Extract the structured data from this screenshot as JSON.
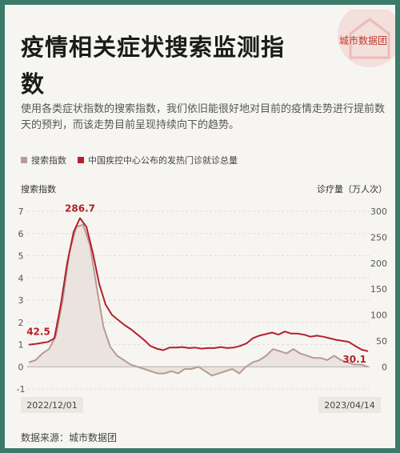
{
  "title": "疫情相关症状搜索监测指数",
  "subtitle": "使用各类症状指数的搜索指数，我们依旧能很好地对目前的疫情走势进行提前数天的预判，而该走势目前呈现持续向下的趋势。",
  "brand": "城市数据团",
  "source": "数据来源：城市数据团",
  "colors": {
    "search": "#b89a94",
    "clinic": "#b3202b",
    "background": "#f6f5f1",
    "frame": "#3b7a68"
  },
  "chart_data": {
    "type": "line",
    "left_axis": {
      "label": "搜索指数",
      "min": -1,
      "max": 7,
      "ticks": [
        "-1",
        "0",
        "1",
        "2",
        "3",
        "4",
        "5",
        "6",
        "7"
      ]
    },
    "right_axis": {
      "label": "诊疗量（万人次）",
      "min": -50,
      "max": 300,
      "ticks": [
        "0",
        "50",
        "100",
        "150",
        "200",
        "250",
        "300"
      ]
    },
    "x_labels": [
      "2022/12/01",
      "2023/04/14"
    ],
    "series": [
      {
        "name": "搜索指数",
        "axis": "left",
        "color": "#b89a94",
        "values": [
          0.2,
          0.3,
          0.6,
          0.8,
          1.4,
          3.0,
          5.2,
          6.3,
          6.4,
          5.5,
          3.6,
          1.8,
          0.9,
          0.5,
          0.3,
          0.1,
          0.0,
          -0.1,
          -0.2,
          -0.3,
          -0.3,
          -0.2,
          -0.3,
          -0.1,
          -0.1,
          0.0,
          -0.2,
          -0.4,
          -0.3,
          -0.2,
          -0.1,
          -0.3,
          0.0,
          0.2,
          0.3,
          0.5,
          0.8,
          0.7,
          0.6,
          0.8,
          0.6,
          0.5,
          0.4,
          0.4,
          0.3,
          0.5,
          0.3,
          0.2,
          0.1,
          0.1,
          0.0
        ]
      },
      {
        "name": "中国疾控中心公布的发热门诊就诊总量",
        "axis": "right",
        "color": "#b3202b",
        "values": [
          42.5,
          44,
          46,
          48,
          55,
          120,
          200,
          260,
          286.7,
          270,
          220,
          160,
          120,
          100,
          90,
          80,
          72,
          62,
          52,
          40,
          35,
          32,
          37,
          37,
          38,
          36,
          37,
          35,
          36,
          36,
          38,
          36,
          37,
          40,
          45,
          55,
          60,
          63,
          66,
          62,
          68,
          64,
          64,
          62,
          58,
          60,
          58,
          55,
          52,
          50,
          48,
          40,
          33,
          30.1
        ]
      }
    ],
    "annotations": [
      {
        "series": 1,
        "index": 0,
        "text": "42.5"
      },
      {
        "series": 1,
        "index": 8,
        "text": "286.7"
      },
      {
        "series": 1,
        "index": 53,
        "text": "30.1"
      }
    ]
  }
}
